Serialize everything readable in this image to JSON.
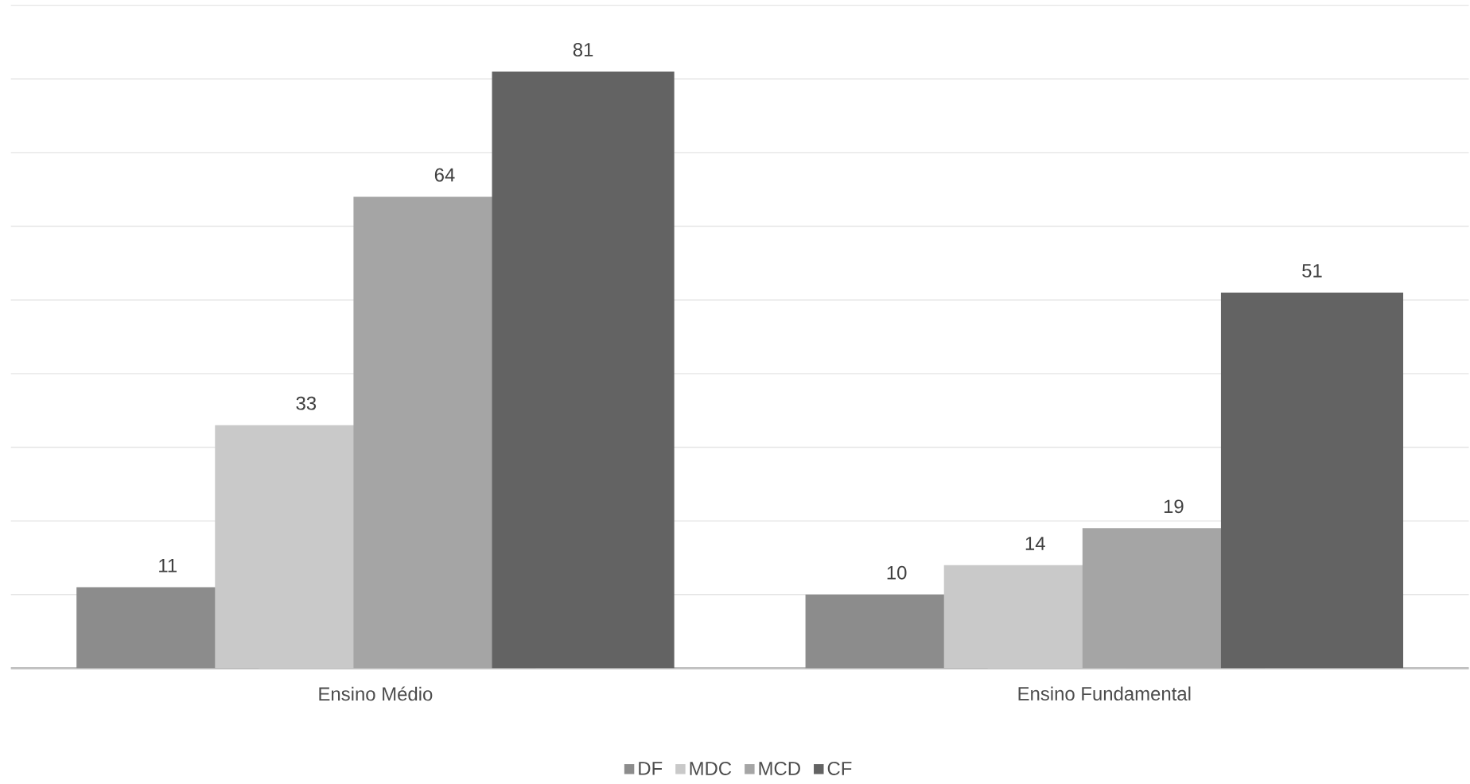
{
  "chart_data": {
    "type": "bar",
    "categories": [
      "Ensino Médio",
      "Ensino Fundamental"
    ],
    "series": [
      {
        "name": "DF",
        "color": "#8c8c8c",
        "values": [
          11,
          10
        ]
      },
      {
        "name": "MDC",
        "color": "#c9c9c9",
        "values": [
          33,
          14
        ]
      },
      {
        "name": "MCD",
        "color": "#a5a5a5",
        "values": [
          64,
          19
        ]
      },
      {
        "name": "CF",
        "color": "#636363",
        "values": [
          81,
          51
        ]
      }
    ],
    "tick_labels": "x",
    "grid": "y",
    "legend": "bottom",
    "data_labels": true
  }
}
